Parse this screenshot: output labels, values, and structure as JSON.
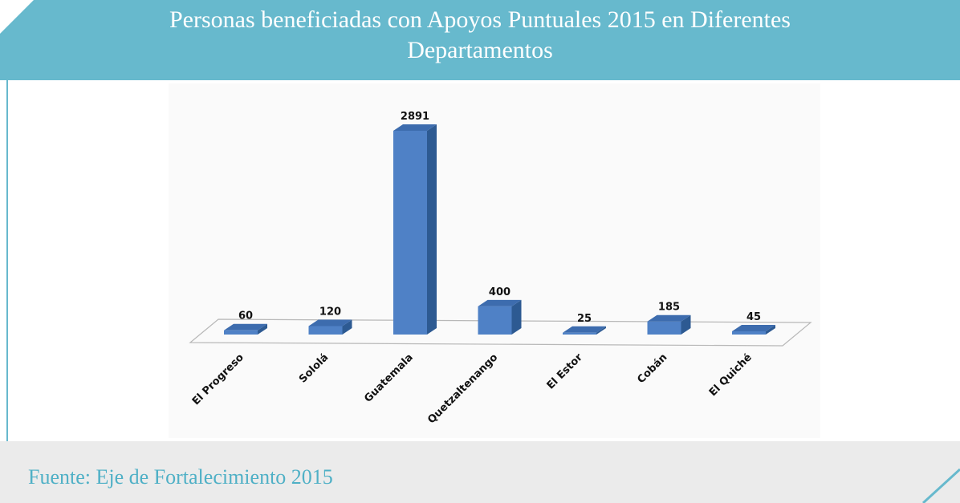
{
  "chart_data": {
    "type": "bar3d",
    "title": "Personas beneficiadas con Apoyos Puntuales 2015 en Diferentes Departamentos",
    "source": "Fuente: Eje de Fortalecimiento 2015",
    "categories": [
      "El Progreso",
      "Sololá",
      "Guatemala",
      "Quetzaltenango",
      "El Estor",
      "Cobán",
      "El Quiché"
    ],
    "values": [
      60,
      120,
      2891,
      400,
      25,
      185,
      45
    ],
    "color": "#4f81c6"
  }
}
